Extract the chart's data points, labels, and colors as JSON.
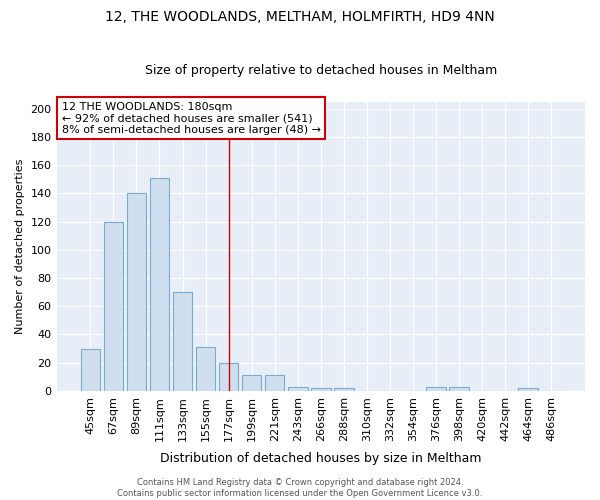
{
  "title": "12, THE WOODLANDS, MELTHAM, HOLMFIRTH, HD9 4NN",
  "subtitle": "Size of property relative to detached houses in Meltham",
  "xlabel": "Distribution of detached houses by size in Meltham",
  "ylabel": "Number of detached properties",
  "bar_color": "#d0dff0",
  "bar_edge_color": "#7aaad0",
  "background_color": "#e8eef8",
  "grid_color": "#ffffff",
  "categories": [
    "45sqm",
    "67sqm",
    "89sqm",
    "111sqm",
    "133sqm",
    "155sqm",
    "177sqm",
    "199sqm",
    "221sqm",
    "243sqm",
    "266sqm",
    "288sqm",
    "310sqm",
    "332sqm",
    "354sqm",
    "376sqm",
    "398sqm",
    "420sqm",
    "442sqm",
    "464sqm",
    "486sqm"
  ],
  "values": [
    30,
    120,
    140,
    151,
    70,
    31,
    20,
    11,
    11,
    3,
    2,
    2,
    0,
    0,
    0,
    3,
    3,
    0,
    0,
    2,
    0
  ],
  "ylim": [
    0,
    205
  ],
  "yticks": [
    0,
    20,
    40,
    60,
    80,
    100,
    120,
    140,
    160,
    180,
    200
  ],
  "red_line_x": 6.5,
  "annotation_text": "12 THE WOODLANDS: 180sqm\n← 92% of detached houses are smaller (541)\n8% of semi-detached houses are larger (48) →",
  "footer_text": "Contains HM Land Registry data © Crown copyright and database right 2024.\nContains public sector information licensed under the Open Government Licence v3.0.",
  "title_fontsize": 10,
  "subtitle_fontsize": 9,
  "xlabel_fontsize": 9,
  "ylabel_fontsize": 8,
  "tick_fontsize": 8,
  "annotation_fontsize": 8,
  "footer_fontsize": 6
}
